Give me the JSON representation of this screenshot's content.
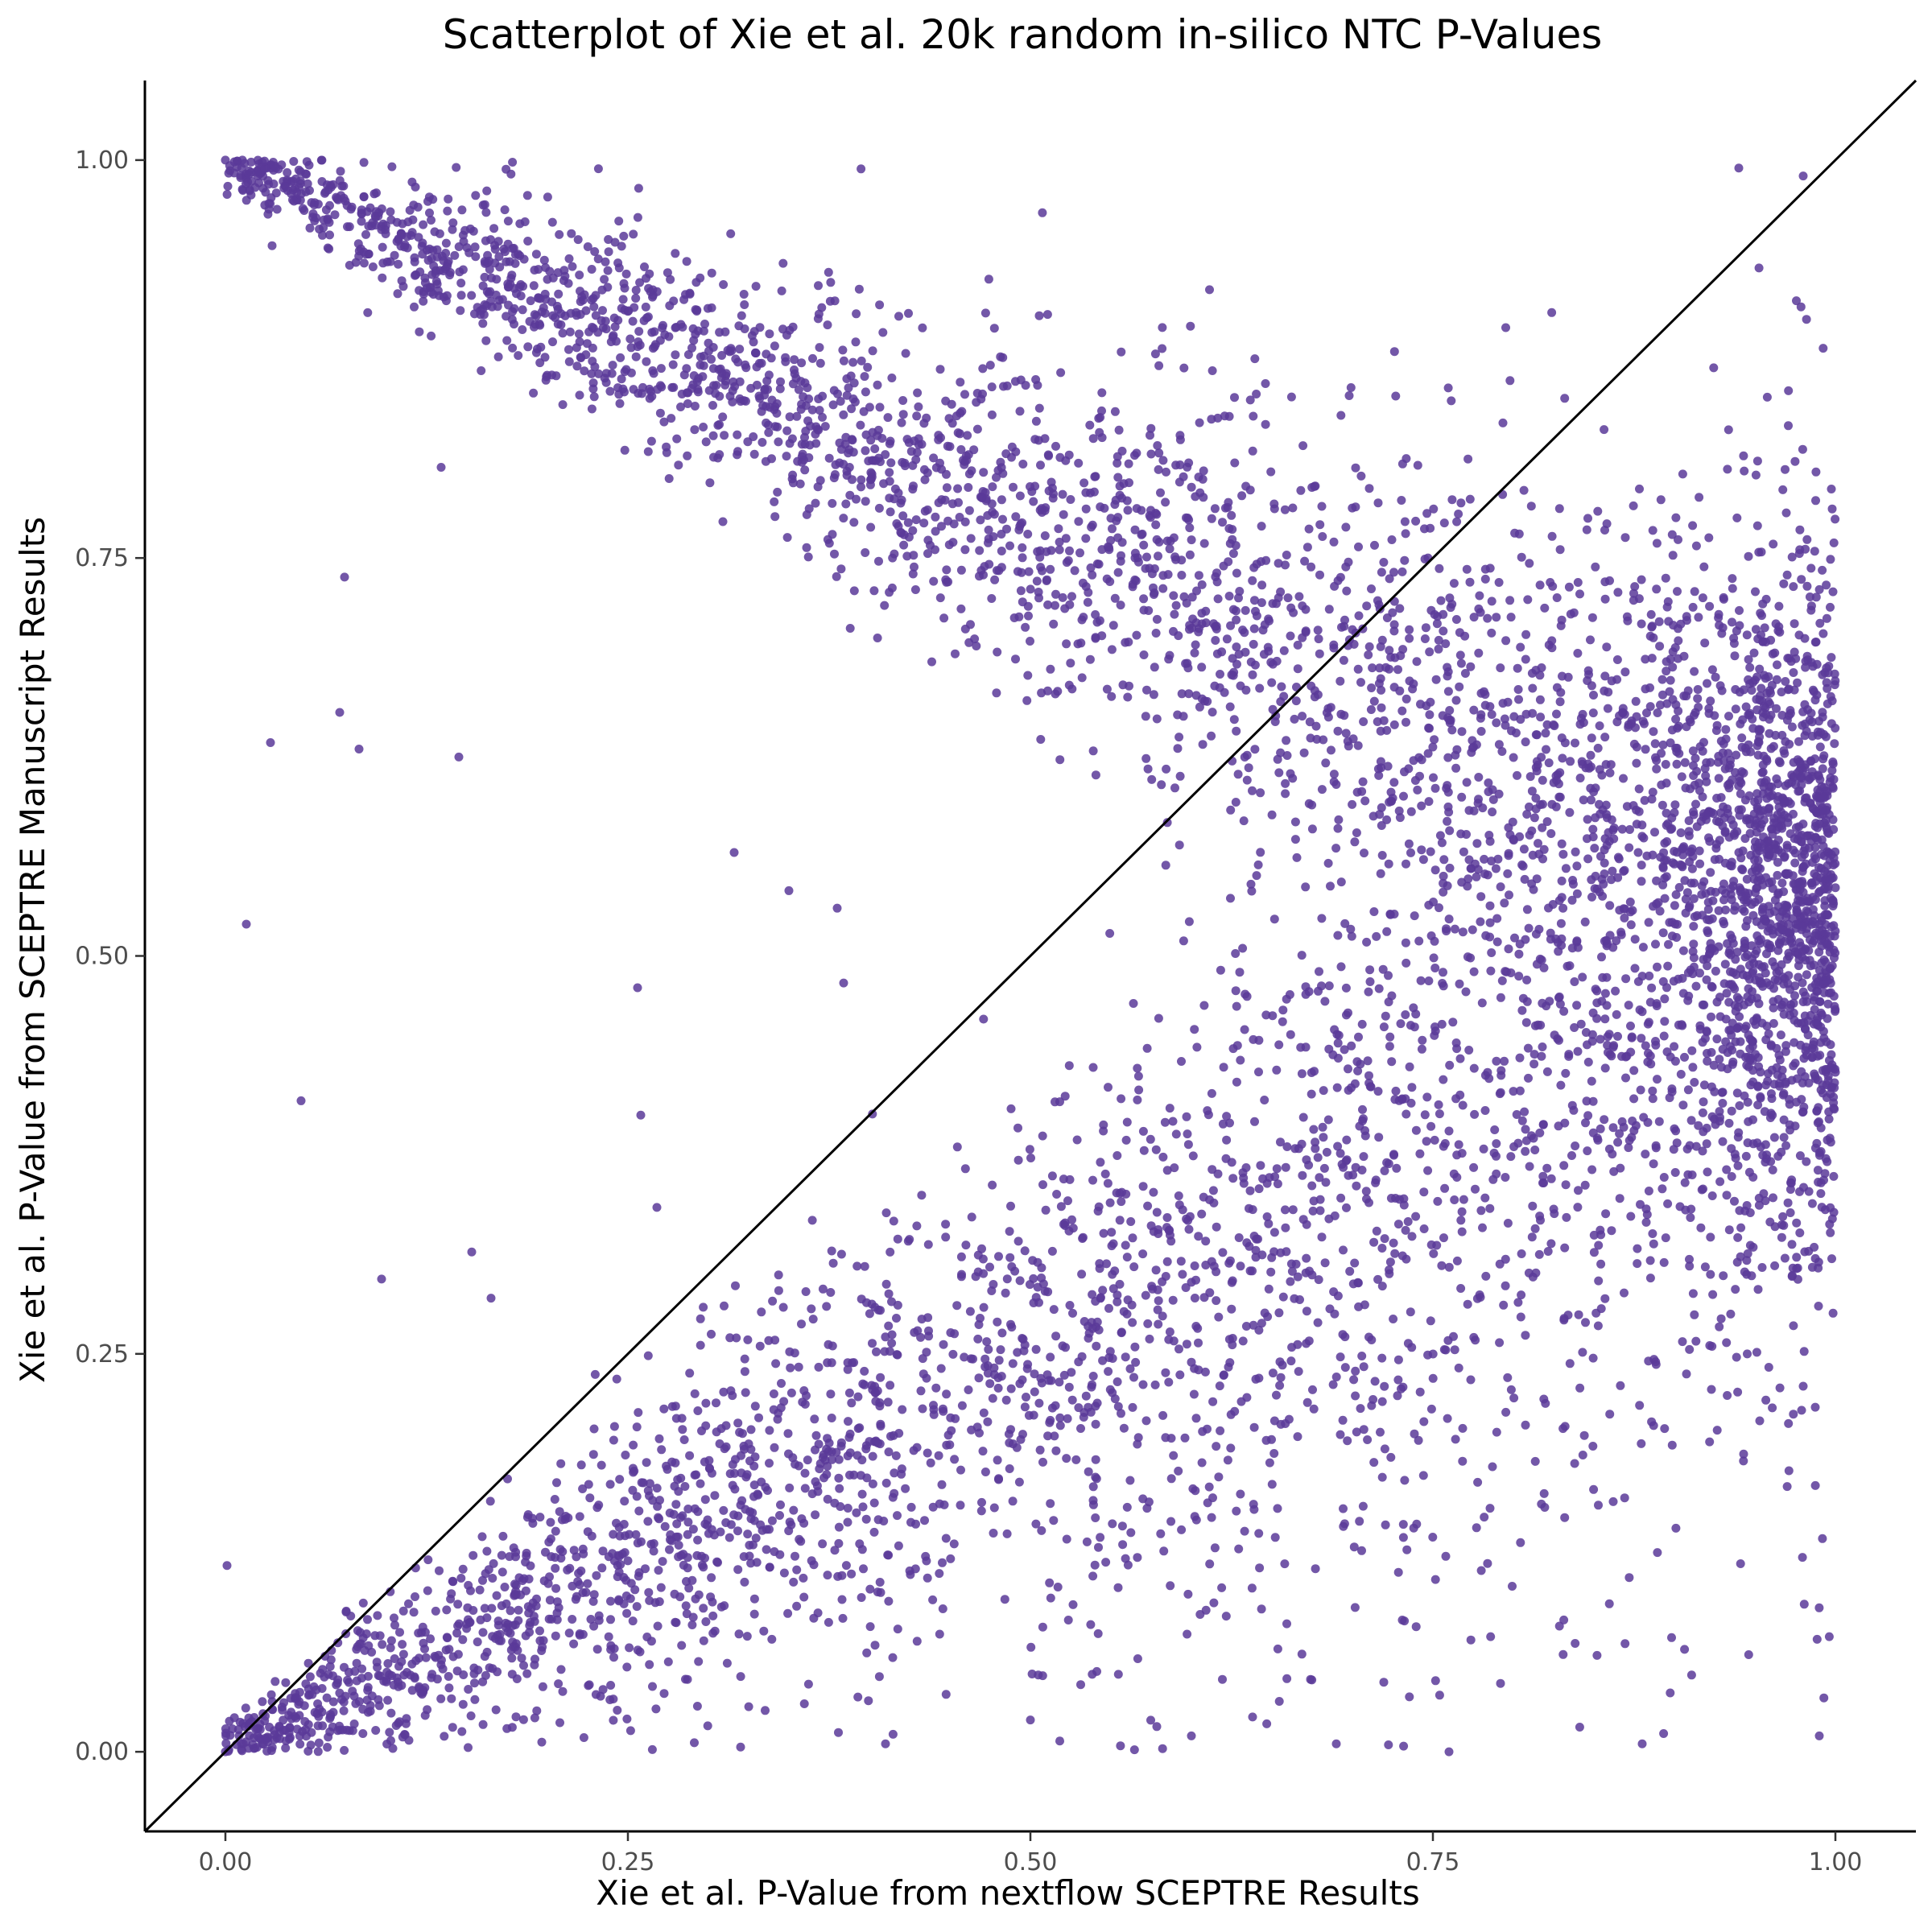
{
  "chart_data": {
    "type": "scatter",
    "title": "Scatterplot of Xie et al. 20k random in-silico NTC P-Values",
    "xlabel": "Xie et al. P-Value from nextflow SCEPTRE Results",
    "ylabel": "Xie et al. P-Value from SCEPTRE Manuscript Results",
    "xlim": [
      -0.05,
      1.05
    ],
    "ylim": [
      -0.05,
      1.05
    ],
    "xticks": [
      0.0,
      0.25,
      0.5,
      0.75,
      1.0
    ],
    "yticks": [
      0.0,
      0.25,
      0.5,
      0.75,
      1.0
    ],
    "xtick_labels": [
      "0.00",
      "0.25",
      "0.50",
      "0.75",
      "1.00"
    ],
    "ytick_labels": [
      "0.00",
      "0.25",
      "0.50",
      "0.75",
      "1.00"
    ],
    "grid": false,
    "legend": "none",
    "reference_line": {
      "type": "identity",
      "slope": 1,
      "intercept": 0
    },
    "point_color": "#5b3a99",
    "n_points": 20000,
    "series": [
      {
        "description_points": "representative sample of visible points",
        "points": [
          [
            0.0,
            1.0
          ],
          [
            0.01,
            0.995
          ],
          [
            0.02,
            0.99
          ],
          [
            0.03,
            0.985
          ],
          [
            0.05,
            0.98
          ],
          [
            0.07,
            0.975
          ],
          [
            0.09,
            0.97
          ],
          [
            0.11,
            0.96
          ],
          [
            0.13,
            0.955
          ],
          [
            0.15,
            0.945
          ],
          [
            0.18,
            0.935
          ],
          [
            0.2,
            0.925
          ],
          [
            0.23,
            0.915
          ],
          [
            0.25,
            0.905
          ],
          [
            0.28,
            0.895
          ],
          [
            0.3,
            0.885
          ],
          [
            0.33,
            0.87
          ],
          [
            0.36,
            0.86
          ],
          [
            0.39,
            0.85
          ],
          [
            0.42,
            0.835
          ],
          [
            0.45,
            0.82
          ],
          [
            0.48,
            0.805
          ],
          [
            0.52,
            0.79
          ],
          [
            0.55,
            0.775
          ],
          [
            0.58,
            0.76
          ],
          [
            0.62,
            0.745
          ],
          [
            0.66,
            0.725
          ],
          [
            0.7,
            0.705
          ],
          [
            0.74,
            0.685
          ],
          [
            0.78,
            0.665
          ],
          [
            0.82,
            0.64
          ],
          [
            0.86,
            0.615
          ],
          [
            0.9,
            0.59
          ],
          [
            0.94,
            0.565
          ],
          [
            0.98,
            0.54
          ],
          [
            0.0,
            0.0
          ],
          [
            0.01,
            0.005
          ],
          [
            0.02,
            0.01
          ],
          [
            0.04,
            0.015
          ],
          [
            0.06,
            0.025
          ],
          [
            0.08,
            0.035
          ],
          [
            0.1,
            0.045
          ],
          [
            0.13,
            0.06
          ],
          [
            0.16,
            0.075
          ],
          [
            0.19,
            0.09
          ],
          [
            0.22,
            0.105
          ],
          [
            0.25,
            0.12
          ],
          [
            0.28,
            0.135
          ],
          [
            0.32,
            0.155
          ],
          [
            0.36,
            0.175
          ],
          [
            0.4,
            0.195
          ],
          [
            0.44,
            0.215
          ],
          [
            0.48,
            0.235
          ],
          [
            0.52,
            0.255
          ],
          [
            0.56,
            0.275
          ],
          [
            0.6,
            0.295
          ],
          [
            0.64,
            0.315
          ],
          [
            0.68,
            0.34
          ],
          [
            0.72,
            0.365
          ],
          [
            0.76,
            0.39
          ],
          [
            0.8,
            0.415
          ],
          [
            0.84,
            0.44
          ],
          [
            0.88,
            0.465
          ],
          [
            0.92,
            0.485
          ],
          [
            0.96,
            0.505
          ],
          [
            0.99,
            0.52
          ],
          [
            0.013,
            0.52
          ],
          [
            0.074,
            0.738
          ],
          [
            0.071,
            0.653
          ],
          [
            0.028,
            0.634
          ],
          [
            0.083,
            0.63
          ],
          [
            0.145,
            0.625
          ],
          [
            0.047,
            0.409
          ],
          [
            0.097,
            0.297
          ],
          [
            0.001,
            0.117
          ],
          [
            0.134,
            0.807
          ],
          [
            0.256,
            0.48
          ],
          [
            0.258,
            0.4
          ],
          [
            0.165,
            0.285
          ],
          [
            0.153,
            0.314
          ],
          [
            0.384,
            0.483
          ],
          [
            0.38,
            0.53
          ],
          [
            0.35,
            0.541
          ],
          [
            0.316,
            0.565
          ],
          [
            0.268,
            0.342
          ],
          [
            0.99,
            0.01
          ],
          [
            0.94,
            0.995
          ],
          [
            0.98,
            0.99
          ],
          [
            0.88,
            0.005
          ],
          [
            0.76,
            0.0
          ],
          [
            0.69,
            0.005
          ],
          [
            0.6,
            0.01
          ],
          [
            0.5,
            0.02
          ],
          [
            0.41,
            0.005
          ],
          [
            0.32,
            0.003
          ]
        ]
      }
    ]
  }
}
